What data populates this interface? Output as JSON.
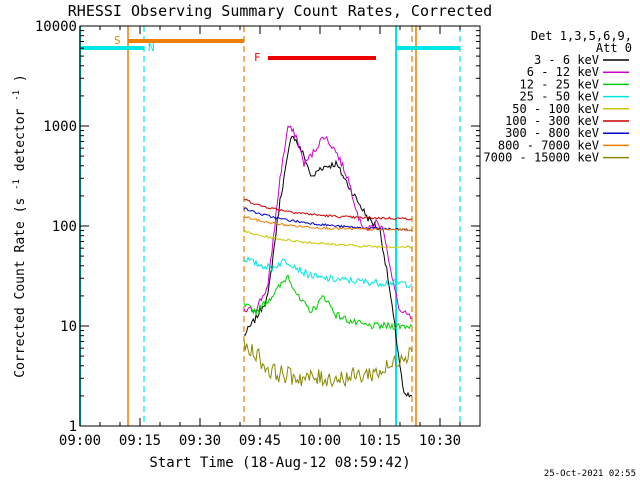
{
  "chart_data": {
    "type": "line",
    "title": "RHESSI Observing Summary Count Rates, Corrected",
    "xlabel": "Start Time (18-Aug-12 08:59:42)",
    "ylabel_main": "Corrected Count Rate (s",
    "ylabel_sup1": "-1",
    "ylabel_mid": " detector",
    "ylabel_sup2": "-1",
    "ylabel_end": ")",
    "xlim": [
      "09:00",
      "10:40"
    ],
    "ylim": [
      1,
      10000
    ],
    "yscale": "log",
    "grid": false,
    "x_ticks": [
      "09:00",
      "09:15",
      "09:30",
      "09:45",
      "10:00",
      "10:15",
      "10:30"
    ],
    "y_ticks": [
      "1",
      "10",
      "100",
      "1000",
      "10000"
    ],
    "legend": {
      "header1": "Det 1,3,5,6,9,",
      "header2": "Att 0",
      "placement": "right"
    },
    "series": [
      {
        "name": "3 - 6 keV",
        "color": "#000000",
        "points": [
          [
            "09:41",
            8
          ],
          [
            "09:44",
            12
          ],
          [
            "09:47",
            20
          ],
          [
            "09:50",
            180
          ],
          [
            "09:53",
            850
          ],
          [
            "09:56",
            500
          ],
          [
            "09:58",
            300
          ],
          [
            "10:00",
            380
          ],
          [
            "10:04",
            420
          ],
          [
            "10:08",
            220
          ],
          [
            "10:12",
            120
          ],
          [
            "10:15",
            90
          ],
          [
            "10:17",
            30
          ],
          [
            "10:19",
            8
          ],
          [
            "10:21",
            2
          ],
          [
            "10:23",
            2
          ]
        ]
      },
      {
        "name": "6 - 12 keV",
        "color": "#cc00cc",
        "points": [
          [
            "09:41",
            14
          ],
          [
            "09:44",
            15
          ],
          [
            "09:47",
            25
          ],
          [
            "09:50",
            300
          ],
          [
            "09:52",
            1000
          ],
          [
            "09:54",
            800
          ],
          [
            "09:56",
            420
          ],
          [
            "09:58",
            520
          ],
          [
            "10:01",
            800
          ],
          [
            "10:04",
            560
          ],
          [
            "10:07",
            300
          ],
          [
            "10:10",
            110
          ],
          [
            "10:12",
            90
          ],
          [
            "10:14",
            110
          ],
          [
            "10:16",
            90
          ],
          [
            "10:18",
            30
          ],
          [
            "10:20",
            14
          ],
          [
            "10:23",
            12
          ]
        ]
      },
      {
        "name": "12 - 25 keV",
        "color": "#00cc00",
        "points": [
          [
            "09:41",
            16
          ],
          [
            "09:44",
            14
          ],
          [
            "09:47",
            18
          ],
          [
            "09:50",
            25
          ],
          [
            "09:52",
            32
          ],
          [
            "09:55",
            18
          ],
          [
            "09:58",
            14
          ],
          [
            "10:01",
            20
          ],
          [
            "10:04",
            13
          ],
          [
            "10:08",
            11
          ],
          [
            "10:12",
            10
          ],
          [
            "10:16",
            10
          ],
          [
            "10:20",
            10
          ],
          [
            "10:23",
            10
          ]
        ]
      },
      {
        "name": "25 - 50 keV",
        "color": "#00e5e5",
        "points": [
          [
            "09:41",
            48
          ],
          [
            "09:44",
            42
          ],
          [
            "09:48",
            38
          ],
          [
            "09:51",
            45
          ],
          [
            "09:53",
            42
          ],
          [
            "09:56",
            34
          ],
          [
            "10:00",
            30
          ],
          [
            "10:05",
            29
          ],
          [
            "10:10",
            28
          ],
          [
            "10:15",
            27
          ],
          [
            "10:20",
            27
          ],
          [
            "10:23",
            26
          ]
        ]
      },
      {
        "name": "50 - 100 keV",
        "color": "#c8c800",
        "points": [
          [
            "09:41",
            88
          ],
          [
            "09:45",
            80
          ],
          [
            "09:50",
            74
          ],
          [
            "09:55",
            70
          ],
          [
            "10:00",
            67
          ],
          [
            "10:05",
            65
          ],
          [
            "10:10",
            63
          ],
          [
            "10:15",
            62
          ],
          [
            "10:20",
            62
          ],
          [
            "10:23",
            61
          ]
        ]
      },
      {
        "name": "100 - 300 keV",
        "color": "#cc0000",
        "points": [
          [
            "09:41",
            185
          ],
          [
            "09:45",
            160
          ],
          [
            "09:50",
            145
          ],
          [
            "09:55",
            135
          ],
          [
            "10:00",
            128
          ],
          [
            "10:05",
            124
          ],
          [
            "10:10",
            121
          ],
          [
            "10:15",
            120
          ],
          [
            "10:20",
            119
          ],
          [
            "10:23",
            118
          ]
        ]
      },
      {
        "name": "300 - 800 keV",
        "color": "#0000cc",
        "points": [
          [
            "09:41",
            150
          ],
          [
            "09:45",
            132
          ],
          [
            "09:50",
            118
          ],
          [
            "09:55",
            110
          ],
          [
            "10:00",
            104
          ],
          [
            "10:05",
            99
          ],
          [
            "10:10",
            96
          ],
          [
            "10:15",
            94
          ],
          [
            "10:20",
            92
          ],
          [
            "10:23",
            91
          ]
        ]
      },
      {
        "name": "800 - 7000 keV",
        "color": "#ee7f00",
        "points": [
          [
            "09:41",
            125
          ],
          [
            "09:45",
            112
          ],
          [
            "09:50",
            104
          ],
          [
            "09:55",
            99
          ],
          [
            "10:00",
            96
          ],
          [
            "10:05",
            94
          ],
          [
            "10:10",
            93
          ],
          [
            "10:15",
            92
          ],
          [
            "10:20",
            92
          ],
          [
            "10:23",
            92
          ]
        ]
      },
      {
        "name": "7000 - 15000 keV",
        "color": "#888800",
        "points": [
          [
            "09:41",
            6
          ],
          [
            "09:44",
            5.5
          ],
          [
            "09:46",
            4
          ],
          [
            "09:48",
            3.5
          ],
          [
            "09:52",
            3.2
          ],
          [
            "09:56",
            3
          ],
          [
            "10:00",
            3
          ],
          [
            "10:05",
            3
          ],
          [
            "10:10",
            3.2
          ],
          [
            "10:15",
            3.5
          ],
          [
            "10:18",
            4
          ],
          [
            "10:20",
            5
          ],
          [
            "10:23",
            5.5
          ]
        ]
      }
    ],
    "overlays": {
      "saa_label": "S",
      "night_label": "N",
      "flare_label": "F",
      "saa_color": "#ee7f00",
      "night_color": "#00e5e5",
      "flare_color": "#ee0000",
      "saa_start": "09:12",
      "saa_end": "09:41",
      "night_periods": [
        {
          "start": "09:00",
          "end": "09:16"
        },
        {
          "start": "10:19",
          "end": "10:35"
        }
      ],
      "flare_start": "09:47",
      "flare_end": "10:14",
      "orange_solid_lines": [
        "09:12",
        "10:24"
      ],
      "orange_dashed_lines": [
        "09:41",
        "10:23"
      ],
      "cyan_solid_lines": [
        "09:00",
        "10:19"
      ],
      "cyan_dashed_lines": [
        "09:16",
        "10:35"
      ]
    },
    "footer_stamp": "25-Oct-2021 02:55"
  }
}
